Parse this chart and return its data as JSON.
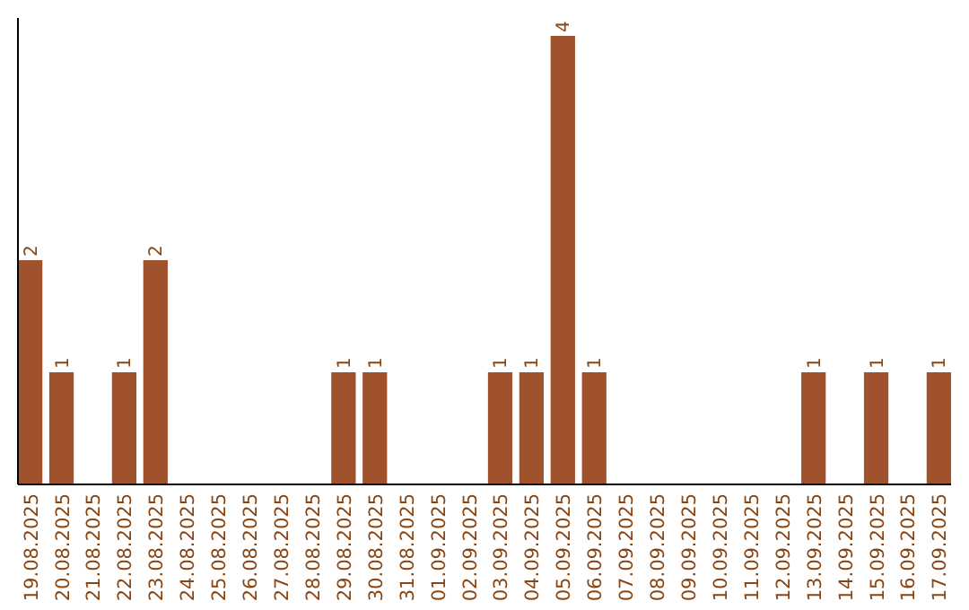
{
  "chart_data": {
    "type": "bar",
    "categories": [
      "19.08.2025",
      "20.08.2025",
      "21.08.2025",
      "22.08.2025",
      "23.08.2025",
      "24.08.2025",
      "25.08.2025",
      "26.08.2025",
      "27.08.2025",
      "28.08.2025",
      "29.08.2025",
      "30.08.2025",
      "31.08.2025",
      "01.09.2025",
      "02.09.2025",
      "03.09.2025",
      "04.09.2025",
      "05.09.2025",
      "06.09.2025",
      "07.09.2025",
      "08.09.2025",
      "09.09.2025",
      "10.09.2025",
      "11.09.2025",
      "12.09.2025",
      "13.09.2025",
      "14.09.2025",
      "15.09.2025",
      "16.09.2025",
      "17.09.2025"
    ],
    "values": [
      2,
      1,
      0,
      1,
      2,
      0,
      0,
      0,
      0,
      0,
      1,
      1,
      0,
      0,
      0,
      1,
      1,
      4,
      1,
      0,
      0,
      0,
      0,
      0,
      0,
      1,
      0,
      1,
      0,
      1
    ],
    "value_labels": [
      "2",
      "1",
      null,
      "1",
      "2",
      null,
      null,
      null,
      null,
      null,
      "1",
      "1",
      null,
      null,
      null,
      "1",
      "1",
      "4",
      "1",
      null,
      null,
      null,
      null,
      null,
      null,
      "1",
      null,
      "1",
      null,
      "1"
    ],
    "color": "#a0522d"
  }
}
